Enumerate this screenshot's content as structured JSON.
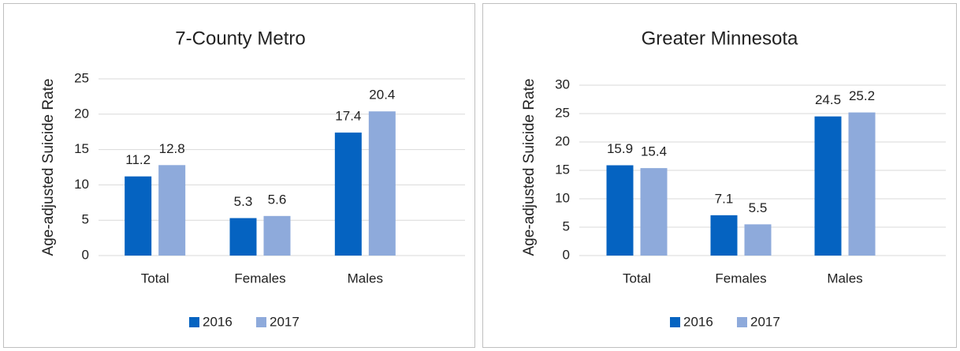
{
  "chart_data": [
    {
      "type": "bar",
      "title": "7-County Metro",
      "y_label": "Age-adjusted Suicide Rate",
      "categories": [
        "Total",
        "Females",
        "Males"
      ],
      "series": [
        {
          "name": "2016",
          "color": "#0563c1",
          "values": [
            11.2,
            5.3,
            17.4
          ]
        },
        {
          "name": "2017",
          "color": "#8eaadb",
          "values": [
            12.8,
            5.6,
            20.4
          ]
        }
      ],
      "ylim": [
        0,
        25
      ],
      "yticks": [
        0,
        5,
        10,
        15,
        20,
        25
      ],
      "grid": true,
      "legend": "bottom"
    },
    {
      "type": "bar",
      "title": "Greater Minnesota",
      "y_label": "Age-adjusted Suicide Rate",
      "categories": [
        "Total",
        "Females",
        "Males"
      ],
      "series": [
        {
          "name": "2016",
          "color": "#0563c1",
          "values": [
            15.9,
            7.1,
            24.5
          ]
        },
        {
          "name": "2017",
          "color": "#8eaadb",
          "values": [
            15.4,
            5.5,
            25.2
          ]
        }
      ],
      "ylim": [
        0,
        30
      ],
      "yticks": [
        0,
        5,
        10,
        15,
        20,
        25,
        30
      ],
      "grid": true,
      "legend": "bottom"
    }
  ]
}
